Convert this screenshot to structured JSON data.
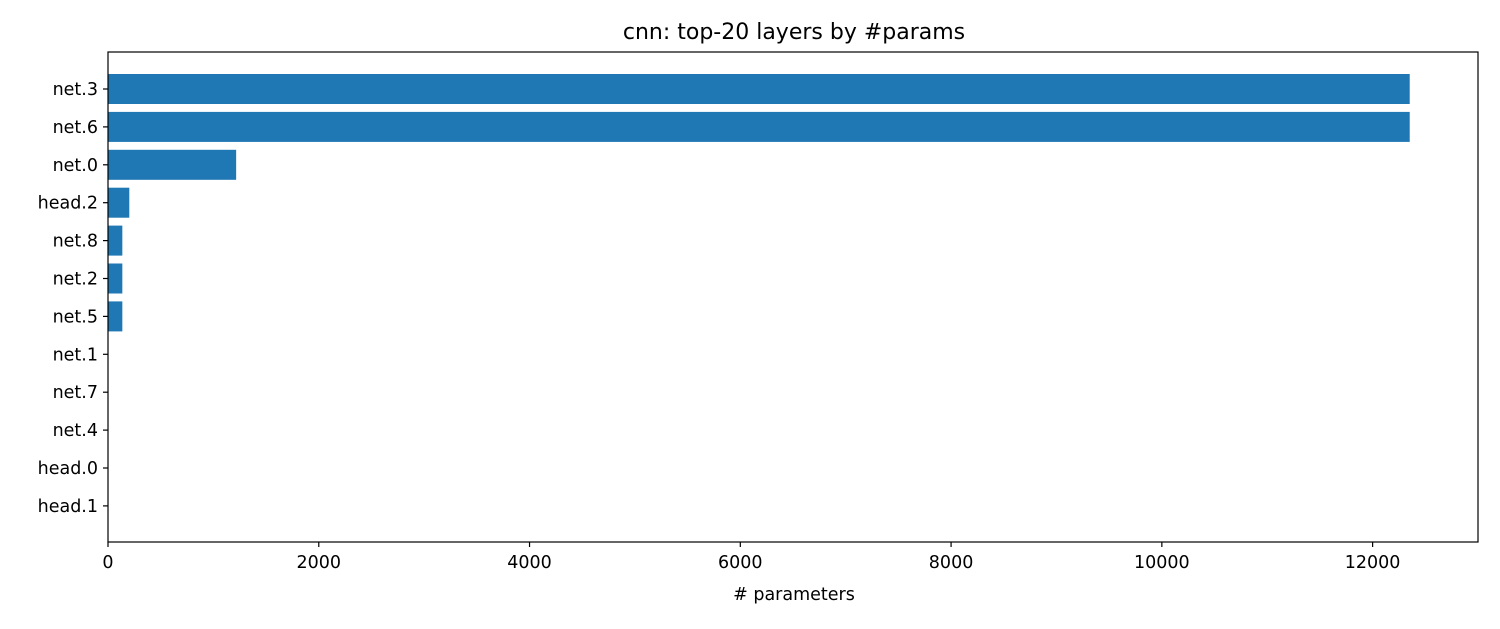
{
  "chart_data": {
    "type": "bar",
    "orientation": "horizontal",
    "title": "cnn: top-20 layers by #params",
    "xlabel": "# parameters",
    "ylabel": "",
    "xlim": [
      0,
      13000
    ],
    "xticks": [
      0,
      2000,
      4000,
      6000,
      8000,
      10000,
      12000
    ],
    "grid": false,
    "bar_color": "#1f77b4",
    "categories": [
      "net.3",
      "net.6",
      "net.0",
      "head.2",
      "net.8",
      "net.2",
      "net.5",
      "net.1",
      "net.7",
      "net.4",
      "head.0",
      "head.1"
    ],
    "values": [
      12352,
      12352,
      1216,
      202,
      136,
      136,
      136,
      0,
      0,
      0,
      0,
      0
    ]
  }
}
